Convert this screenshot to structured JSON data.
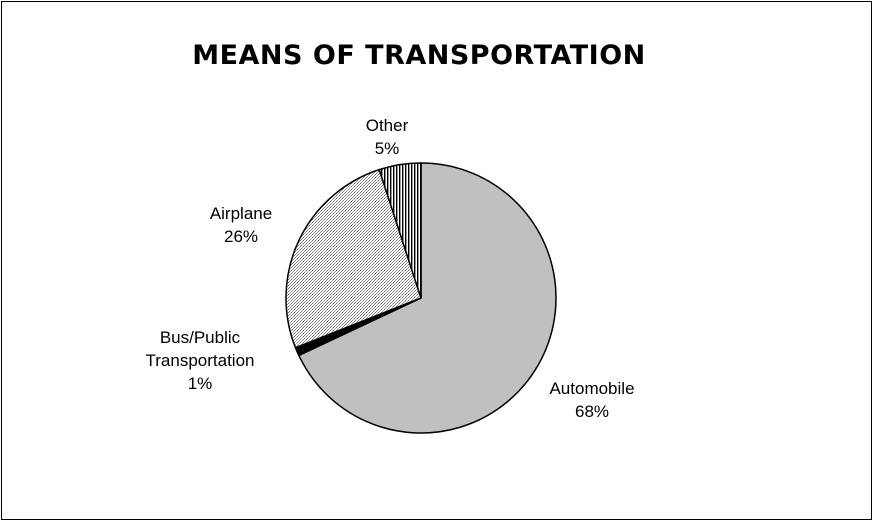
{
  "chart_data": {
    "type": "pie",
    "title": "MEANS OF TRANSPORTATION",
    "slices": [
      {
        "label": "Automobile",
        "label_lines": [
          "Automobile"
        ],
        "percent_label": "68%",
        "value": 68,
        "fill": "solid-gray",
        "color": "#c0c0c0"
      },
      {
        "label": "Bus/Public Transportation",
        "label_lines": [
          "Bus/Public",
          "Transportation"
        ],
        "percent_label": "1%",
        "value": 1,
        "fill": "solid-black",
        "color": "#000000"
      },
      {
        "label": "Airplane",
        "label_lines": [
          "Airplane"
        ],
        "percent_label": "26%",
        "value": 26,
        "fill": "dotted-pattern",
        "color": "#b8b8b8"
      },
      {
        "label": "Other",
        "label_lines": [
          "Other"
        ],
        "percent_label": "5%",
        "value": 5,
        "fill": "vertical-stripes",
        "color": "#555555"
      }
    ],
    "start_angle": "12 o'clock",
    "direction": "clockwise",
    "legend": "none",
    "data_labels": "category and percentage"
  }
}
